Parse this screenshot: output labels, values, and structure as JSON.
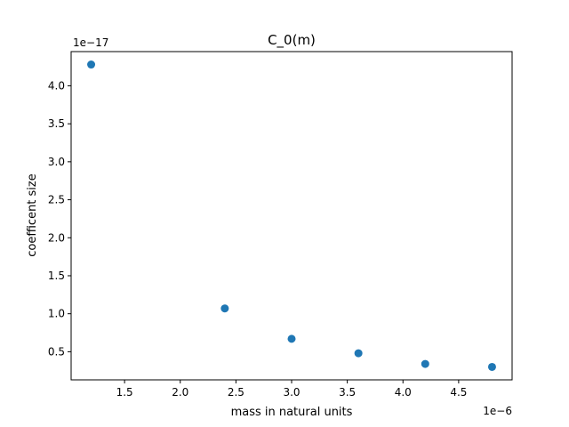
{
  "chart_data": {
    "type": "scatter",
    "title": "C_0(m)",
    "xlabel": "mass in natural units",
    "ylabel": "coefficent size",
    "x_offset_label": "1e−6",
    "y_offset_label": "1e−17",
    "x_scale": 1e-06,
    "y_scale": 1e-17,
    "xlim": [
      1.02,
      4.98
    ],
    "ylim": [
      0.13,
      4.45
    ],
    "x_ticks": [
      1.5,
      2.0,
      2.5,
      3.0,
      3.5,
      4.0,
      4.5
    ],
    "x_tick_labels": [
      "1.5",
      "2.0",
      "2.5",
      "3.0",
      "3.5",
      "4.0",
      "4.5"
    ],
    "y_ticks": [
      0.5,
      1.0,
      1.5,
      2.0,
      2.5,
      3.0,
      3.5,
      4.0
    ],
    "y_tick_labels": [
      "0.5",
      "1.0",
      "1.5",
      "2.0",
      "2.5",
      "3.0",
      "3.5",
      "4.0"
    ],
    "grid": false,
    "color": "#1f77b4",
    "x": [
      1.2,
      2.4,
      3.0,
      3.6,
      4.2,
      4.8
    ],
    "y": [
      4.28,
      1.07,
      0.67,
      0.48,
      0.34,
      0.3
    ]
  }
}
